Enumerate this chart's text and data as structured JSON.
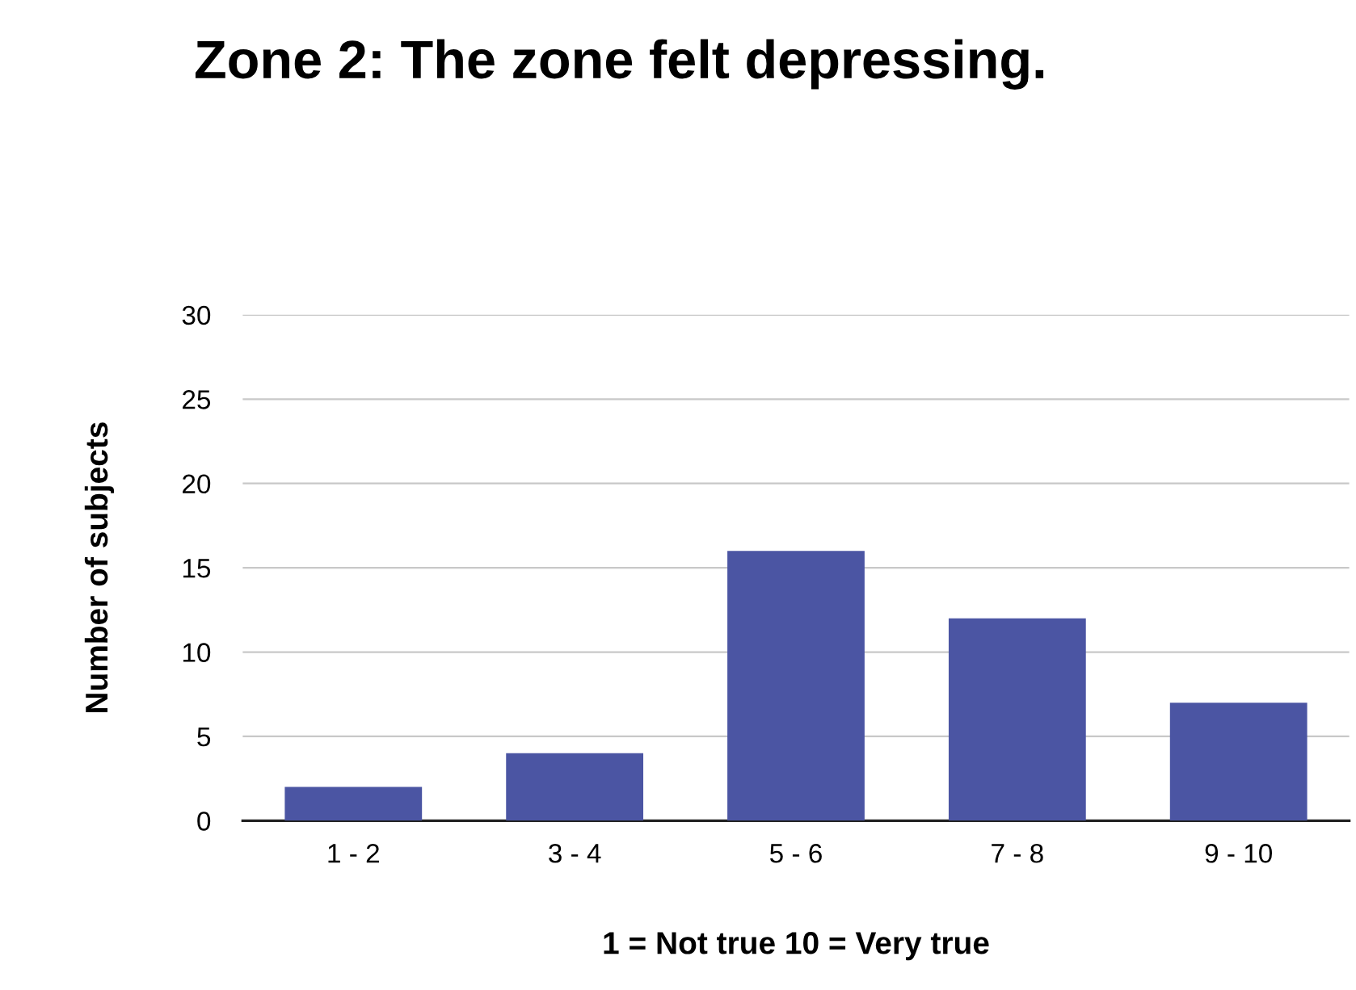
{
  "chart_data": {
    "type": "bar",
    "title": "Zone 2: The zone felt depressing.",
    "xlabel": "1 = Not true 10 = Very true",
    "ylabel": "Number of subjects",
    "categories": [
      "1 - 2",
      "3 - 4",
      "5 - 6",
      "7 - 8",
      "9 - 10"
    ],
    "values": [
      2,
      4,
      16,
      12,
      7
    ],
    "color": "#4b55a3",
    "ylim": [
      0,
      30
    ],
    "yticks": [
      0,
      5,
      10,
      15,
      20,
      25,
      30
    ],
    "grid": "y",
    "legend": false
  }
}
